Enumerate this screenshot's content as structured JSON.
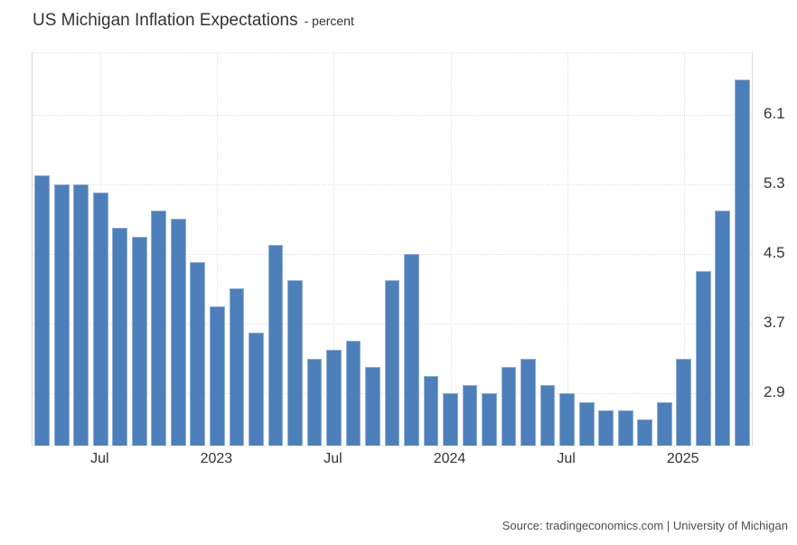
{
  "header": {
    "title": "US Michigan Inflation Expectations",
    "subtitle": "- percent"
  },
  "footer": {
    "source": "Source: tradingeconomics.com | University of Michigan"
  },
  "colors": {
    "bar": "#4d7fba",
    "bar_border": "#8fafd6",
    "grid": "#e2e2e2",
    "plot_border": "#d9d9d9",
    "text": "#333333"
  },
  "chart_data": {
    "type": "bar",
    "title": "US Michigan Inflation Expectations",
    "ylabel": "percent",
    "categories": [
      "Apr 2022",
      "May 2022",
      "Jun 2022",
      "Jul 2022",
      "Aug 2022",
      "Sep 2022",
      "Oct 2022",
      "Nov 2022",
      "Dec 2022",
      "Jan 2023",
      "Feb 2023",
      "Mar 2023",
      "Apr 2023",
      "May 2023",
      "Jun 2023",
      "Jul 2023",
      "Aug 2023",
      "Sep 2023",
      "Oct 2023",
      "Nov 2023",
      "Dec 2023",
      "Jan 2024",
      "Feb 2024",
      "Mar 2024",
      "Apr 2024",
      "May 2024",
      "Jun 2024",
      "Jul 2024",
      "Aug 2024",
      "Sep 2024",
      "Oct 2024",
      "Nov 2024",
      "Dec 2024",
      "Jan 2025",
      "Feb 2025",
      "Mar 2025",
      "Apr 2025"
    ],
    "values": [
      5.4,
      5.3,
      5.3,
      5.2,
      4.8,
      4.7,
      5.0,
      4.9,
      4.4,
      3.9,
      4.1,
      3.6,
      4.6,
      4.2,
      3.3,
      3.4,
      3.5,
      3.2,
      4.2,
      4.5,
      3.1,
      2.9,
      3.0,
      2.9,
      3.2,
      3.3,
      3.0,
      2.9,
      2.8,
      2.7,
      2.7,
      2.6,
      2.8,
      3.3,
      4.3,
      5.0,
      6.5
    ],
    "ylim": [
      2.3,
      6.8
    ],
    "yticks": [
      "6.1",
      "5.3",
      "4.5",
      "3.7",
      "2.9"
    ],
    "xticks": [
      {
        "index": 3,
        "label": "Jul"
      },
      {
        "index": 9,
        "label": "2023"
      },
      {
        "index": 15,
        "label": "Jul"
      },
      {
        "index": 21,
        "label": "2024"
      },
      {
        "index": 27,
        "label": "Jul"
      },
      {
        "index": 33,
        "label": "2025"
      }
    ],
    "grid": true,
    "legend": false,
    "bar_width_fraction": 0.78
  }
}
